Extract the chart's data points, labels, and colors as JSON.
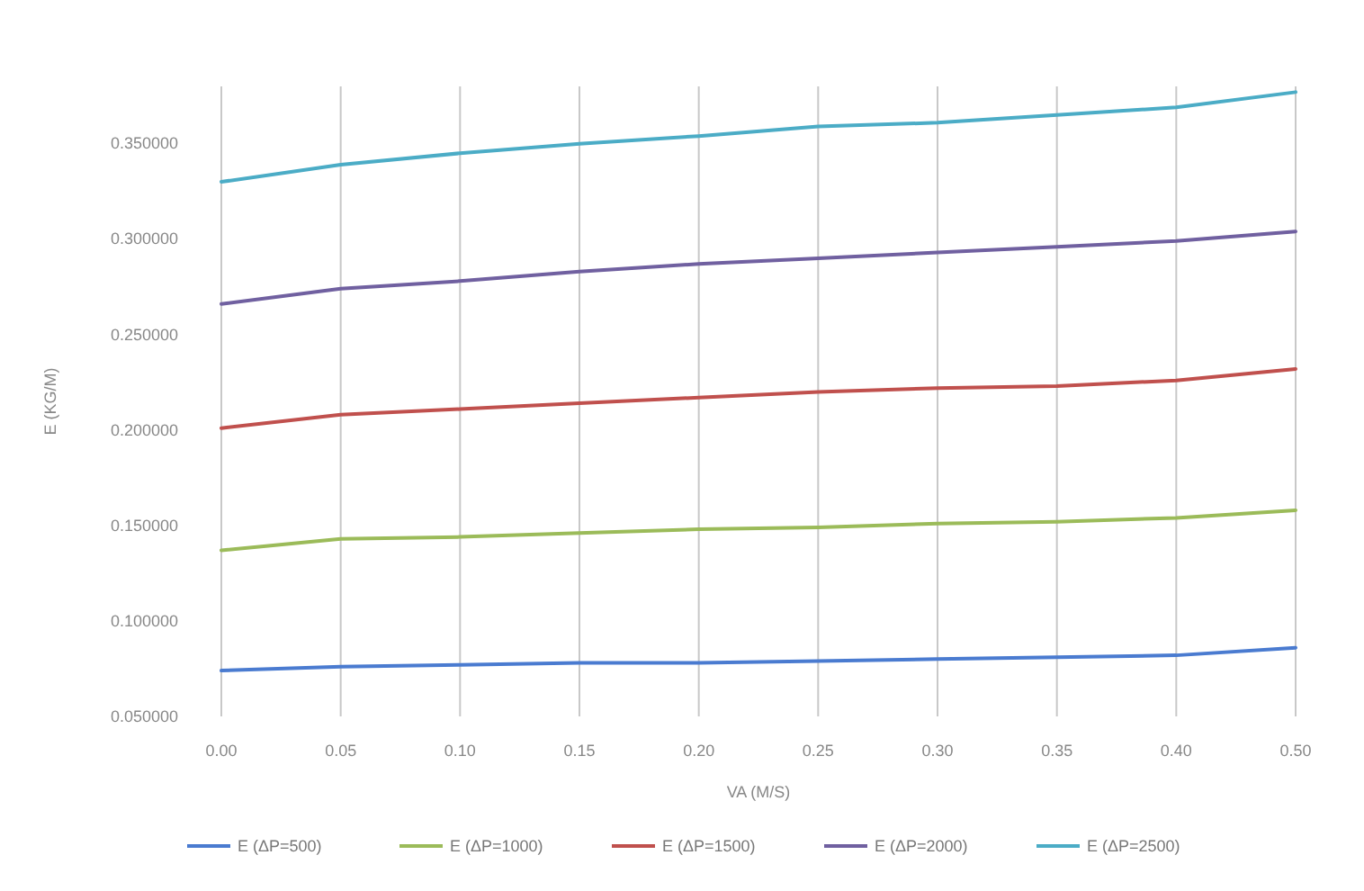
{
  "chart_data": {
    "type": "line",
    "xlabel": "VA (M/S)",
    "ylabel": "E (KG/M)",
    "categories": [
      "0.00",
      "0.05",
      "0.10",
      "0.15",
      "0.20",
      "0.25",
      "0.30",
      "0.35",
      "0.40",
      "0.50"
    ],
    "ylim": [
      0.05,
      0.38
    ],
    "yticks": [
      {
        "value": 0.05,
        "label": "0.050000"
      },
      {
        "value": 0.1,
        "label": "0.100000"
      },
      {
        "value": 0.15,
        "label": "0.150000"
      },
      {
        "value": 0.2,
        "label": "0.200000"
      },
      {
        "value": 0.25,
        "label": "0.250000"
      },
      {
        "value": 0.3,
        "label": "0.300000"
      },
      {
        "value": 0.35,
        "label": "0.350000"
      }
    ],
    "grid": "x",
    "legend": "bottom",
    "marker": "none",
    "line_style": "solid",
    "series": [
      {
        "name": "E (ΔP=500)",
        "color": "#4a7bd0",
        "values": [
          0.074,
          0.076,
          0.077,
          0.078,
          0.078,
          0.079,
          0.08,
          0.081,
          0.082,
          0.086
        ]
      },
      {
        "name": "E (ΔP=1000)",
        "color": "#9bbb59",
        "values": [
          0.137,
          0.143,
          0.144,
          0.146,
          0.148,
          0.149,
          0.151,
          0.152,
          0.154,
          0.158
        ]
      },
      {
        "name": "E (ΔP=1500)",
        "color": "#c0504d",
        "values": [
          0.201,
          0.208,
          0.211,
          0.214,
          0.217,
          0.22,
          0.222,
          0.223,
          0.226,
          0.232
        ]
      },
      {
        "name": "E (ΔP=2000)",
        "color": "#7060a0",
        "values": [
          0.266,
          0.274,
          0.278,
          0.283,
          0.287,
          0.29,
          0.293,
          0.296,
          0.299,
          0.304
        ]
      },
      {
        "name": "E (ΔP=2500)",
        "color": "#4bacc6",
        "values": [
          0.33,
          0.339,
          0.345,
          0.35,
          0.354,
          0.359,
          0.361,
          0.365,
          0.369,
          0.377
        ]
      }
    ]
  }
}
